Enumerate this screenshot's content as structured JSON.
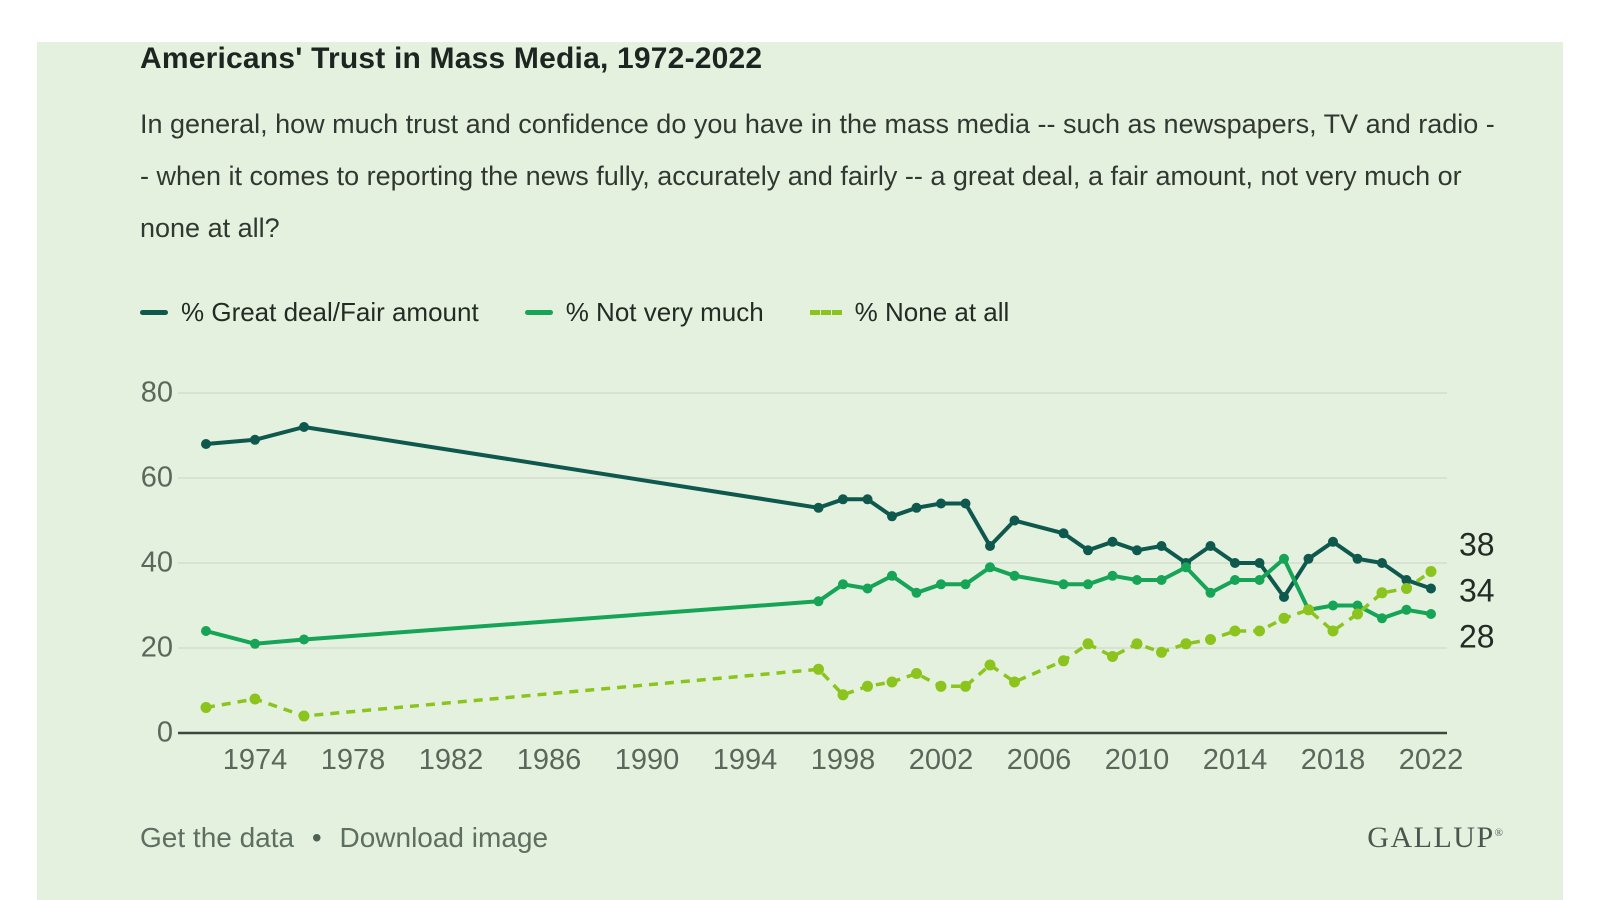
{
  "header": {
    "title": "Americans' Trust in Mass Media, 1972-2022",
    "question": "In general, how much trust and confidence do you have in the mass media -- such as newspapers, TV and radio -- when it comes to reporting the news fully, accurately and fairly -- a great deal, a fair amount, not very much or none at all?"
  },
  "legend": {
    "items": [
      {
        "label": "% Great deal/Fair amount",
        "color": "#0e584e",
        "style": "solid"
      },
      {
        "label": "% Not very much",
        "color": "#16a456",
        "style": "solid"
      },
      {
        "label": "% None at all",
        "color": "#8cc41e",
        "style": "dashed"
      }
    ]
  },
  "chart_data": {
    "type": "line",
    "title": "Americans' Trust in Mass Media, 1972-2022",
    "xlabel": "",
    "ylabel": "",
    "x_range": [
      1972,
      2022
    ],
    "ylim": [
      0,
      80
    ],
    "y_ticks": [
      0,
      20,
      40,
      60,
      80
    ],
    "x_ticks": [
      1974,
      1978,
      1982,
      1986,
      1990,
      1994,
      1998,
      2002,
      2006,
      2010,
      2014,
      2018,
      2022
    ],
    "grid": "horizontal",
    "legend_position": "top",
    "background": "#e4f1df",
    "gridline_color": "#d3ddcd",
    "axis_line_color": "#3d473d",
    "series": [
      {
        "name": "% Great deal/Fair amount",
        "color": "#0e584e",
        "style": "solid",
        "end_label": "34",
        "points": [
          [
            1972,
            68
          ],
          [
            1974,
            69
          ],
          [
            1976,
            72
          ],
          [
            1997,
            53
          ],
          [
            1998,
            55
          ],
          [
            1999,
            55
          ],
          [
            2000,
            51
          ],
          [
            2001,
            53
          ],
          [
            2002,
            54
          ],
          [
            2003,
            54
          ],
          [
            2004,
            44
          ],
          [
            2005,
            50
          ],
          [
            2007,
            47
          ],
          [
            2008,
            43
          ],
          [
            2009,
            45
          ],
          [
            2010,
            43
          ],
          [
            2011,
            44
          ],
          [
            2012,
            40
          ],
          [
            2013,
            44
          ],
          [
            2014,
            40
          ],
          [
            2015,
            40
          ],
          [
            2016,
            32
          ],
          [
            2017,
            41
          ],
          [
            2018,
            45
          ],
          [
            2019,
            41
          ],
          [
            2020,
            40
          ],
          [
            2021,
            36
          ],
          [
            2022,
            34
          ]
        ]
      },
      {
        "name": "% Not very much",
        "color": "#16a456",
        "style": "solid",
        "end_label": "28",
        "points": [
          [
            1972,
            24
          ],
          [
            1974,
            21
          ],
          [
            1976,
            22
          ],
          [
            1997,
            31
          ],
          [
            1998,
            35
          ],
          [
            1999,
            34
          ],
          [
            2000,
            37
          ],
          [
            2001,
            33
          ],
          [
            2002,
            35
          ],
          [
            2003,
            35
          ],
          [
            2004,
            39
          ],
          [
            2005,
            37
          ],
          [
            2007,
            35
          ],
          [
            2008,
            35
          ],
          [
            2009,
            37
          ],
          [
            2010,
            36
          ],
          [
            2011,
            36
          ],
          [
            2012,
            39
          ],
          [
            2013,
            33
          ],
          [
            2014,
            36
          ],
          [
            2015,
            36
          ],
          [
            2016,
            41
          ],
          [
            2017,
            29
          ],
          [
            2018,
            30
          ],
          [
            2019,
            30
          ],
          [
            2020,
            27
          ],
          [
            2021,
            29
          ],
          [
            2022,
            28
          ]
        ]
      },
      {
        "name": "% None at all",
        "color": "#8cc41e",
        "style": "dashed",
        "end_label": "38",
        "points": [
          [
            1972,
            6
          ],
          [
            1974,
            8
          ],
          [
            1976,
            4
          ],
          [
            1997,
            15
          ],
          [
            1998,
            9
          ],
          [
            1999,
            11
          ],
          [
            2000,
            12
          ],
          [
            2001,
            14
          ],
          [
            2002,
            11
          ],
          [
            2003,
            11
          ],
          [
            2004,
            16
          ],
          [
            2005,
            12
          ],
          [
            2007,
            17
          ],
          [
            2008,
            21
          ],
          [
            2009,
            18
          ],
          [
            2010,
            21
          ],
          [
            2011,
            19
          ],
          [
            2012,
            21
          ],
          [
            2013,
            22
          ],
          [
            2014,
            24
          ],
          [
            2015,
            24
          ],
          [
            2016,
            27
          ],
          [
            2017,
            29
          ],
          [
            2018,
            24
          ],
          [
            2019,
            28
          ],
          [
            2020,
            33
          ],
          [
            2021,
            34
          ],
          [
            2022,
            38
          ]
        ]
      }
    ]
  },
  "footer": {
    "get_data": "Get the data",
    "separator": "•",
    "download_image": "Download image",
    "brand": "GALLUP",
    "registered": "®"
  },
  "colors": {
    "card_background": "#e4f1df",
    "title_text": "#1d2520",
    "body_text": "#313831",
    "tick_text": "#5c675c",
    "footer_text": "#5e6e61"
  }
}
